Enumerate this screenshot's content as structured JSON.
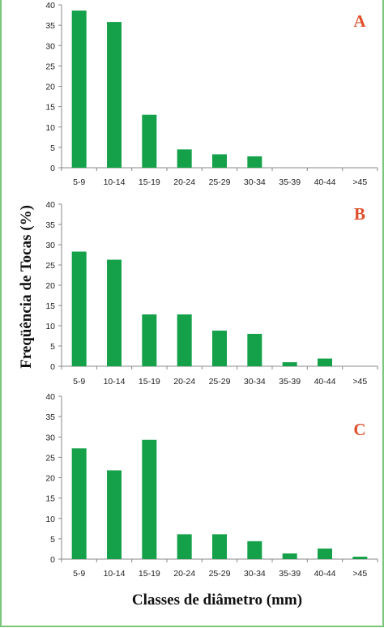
{
  "figure": {
    "ylabel": "Freqüência de Tocas (%)",
    "xlabel": "Classes de diâmetro  (mm)",
    "frame_color": "#7ac77a",
    "bar_color": "#14a14a",
    "letter_color": "#e0502c"
  },
  "chart_data": [
    {
      "type": "bar",
      "panel_label": "A",
      "categories": [
        "5-9",
        "10-14",
        "15-19",
        "20-24",
        "25-29",
        "30-34",
        "35-39",
        "40-44",
        ">45"
      ],
      "values": [
        38.6,
        35.8,
        13.0,
        4.5,
        3.3,
        2.8,
        0,
        0,
        0
      ],
      "ylim": [
        0,
        40
      ],
      "yticks": [
        0,
        5,
        10,
        15,
        20,
        25,
        30,
        35,
        40
      ],
      "grid": false
    },
    {
      "type": "bar",
      "panel_label": "B",
      "categories": [
        "5-9",
        "10-14",
        "15-19",
        "20-24",
        "25-29",
        "30-34",
        "35-39",
        "40-44",
        ">45"
      ],
      "values": [
        28.3,
        26.3,
        12.8,
        12.8,
        8.8,
        8.0,
        1.0,
        1.9,
        0
      ],
      "ylim": [
        0,
        40
      ],
      "yticks": [
        0,
        5,
        10,
        15,
        20,
        25,
        30,
        35,
        40
      ],
      "grid": false
    },
    {
      "type": "bar",
      "panel_label": "C",
      "categories": [
        "5-9",
        "10-14",
        "15-19",
        "20-24",
        "25-29",
        "30-34",
        "35-39",
        "40-44",
        ">45"
      ],
      "values": [
        27.2,
        21.8,
        29.3,
        6.1,
        6.1,
        4.4,
        1.4,
        2.6,
        0.6
      ],
      "ylim": [
        0,
        40
      ],
      "yticks": [
        0,
        5,
        10,
        15,
        20,
        25,
        30,
        35,
        40
      ],
      "grid": false
    }
  ]
}
